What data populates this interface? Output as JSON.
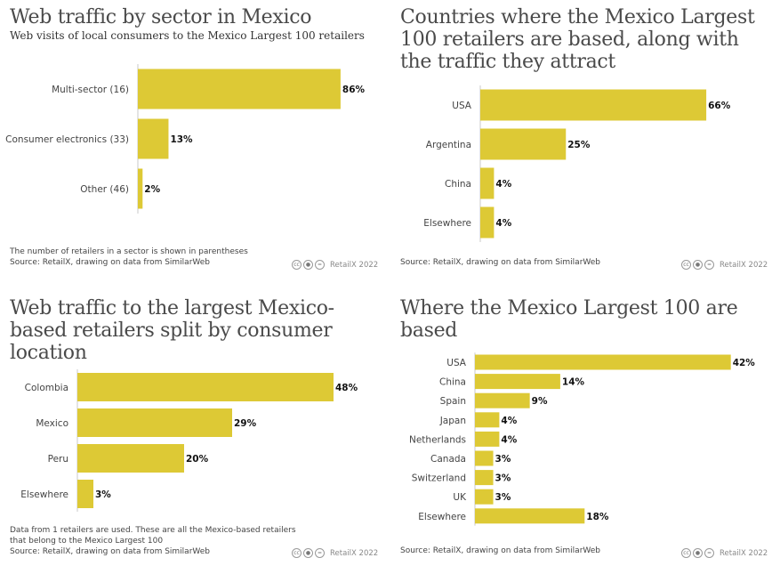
{
  "colors": {
    "bar": "#ddc935",
    "axis": "#c8c8c8"
  },
  "credit_text": "RetailX 2022",
  "license_icons": [
    "cc-icon",
    "by-icon",
    "nc-icon"
  ],
  "panels": [
    {
      "title": "Web traffic by sector in Mexico",
      "subtitle": "Web visits of local consumers to the Mexico Largest 100 retailers",
      "footnote": [
        "The number of retailers in a sector is shown in parentheses",
        "Source: RetailX, drawing on data from SimilarWeb"
      ]
    },
    {
      "title": "Countries where the Mexico Largest 100 retailers are based, along with the traffic they attract",
      "subtitle": "",
      "footnote": [
        "Source: RetailX, drawing on data from SimilarWeb"
      ]
    },
    {
      "title": "Web traffic to the largest Mexico-based retailers split by consumer location",
      "subtitle": "",
      "footnote": [
        "Data from 1 retailers are used. These are all the Mexico-based retailers",
        "that belong to the Mexico Largest 100",
        "Source: RetailX, drawing on data from SimilarWeb"
      ]
    },
    {
      "title": "Where the Mexico Largest 100 are based",
      "subtitle": "",
      "footnote": [
        "Source: RetailX, drawing on data from SimilarWeb"
      ]
    }
  ],
  "chart_data": [
    {
      "type": "bar",
      "orientation": "horizontal",
      "title": "Web traffic by sector in Mexico",
      "categories": [
        "Multi-sector (16)",
        "Consumer electronics (33)",
        "Other (46)"
      ],
      "values": [
        86,
        13,
        2
      ],
      "value_labels": [
        "86%",
        "13%",
        "2%"
      ],
      "xlim": [
        0,
        100
      ]
    },
    {
      "type": "bar",
      "orientation": "horizontal",
      "title": "Countries where the Mexico Largest 100 retailers are based, along with the traffic they attract",
      "categories": [
        "USA",
        "Argentina",
        "China",
        "Elsewhere"
      ],
      "values": [
        66,
        25,
        4,
        4
      ],
      "value_labels": [
        "66%",
        "25%",
        "4%",
        "4%"
      ],
      "xlim": [
        0,
        100
      ]
    },
    {
      "type": "bar",
      "orientation": "horizontal",
      "title": "Web traffic to the largest Mexico-based retailers split by consumer location",
      "categories": [
        "Colombia",
        "Mexico",
        "Peru",
        "Elsewhere"
      ],
      "values": [
        48,
        29,
        20,
        3
      ],
      "value_labels": [
        "48%",
        "29%",
        "20%",
        "3%"
      ],
      "xlim": [
        0,
        100
      ]
    },
    {
      "type": "bar",
      "orientation": "horizontal",
      "title": "Where the Mexico Largest 100 are based",
      "categories": [
        "USA",
        "China",
        "Spain",
        "Japan",
        "Netherlands",
        "Canada",
        "Switzerland",
        "UK",
        "Elsewhere"
      ],
      "values": [
        42,
        14,
        9,
        4,
        4,
        3,
        3,
        3,
        18
      ],
      "value_labels": [
        "42%",
        "14%",
        "9%",
        "4%",
        "4%",
        "3%",
        "3%",
        "3%",
        "18%"
      ],
      "xlim": [
        0,
        100
      ]
    }
  ]
}
